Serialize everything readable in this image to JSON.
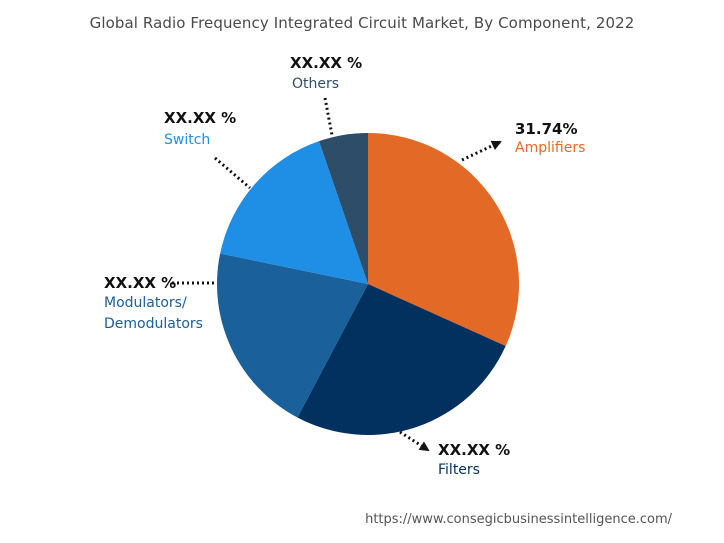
{
  "title": "Global Radio Frequency Integrated Circuit Market, By Component, 2022",
  "source": "https://www.consegicbusinessintelligence.com/",
  "chart_data": {
    "type": "pie",
    "title": "Global Radio Frequency Integrated Circuit Market, By Component, 2022",
    "slices": [
      {
        "name": "Amplifiers",
        "label_line1": "Amplifiers",
        "label_line2": "",
        "value": 31.74,
        "pct_text": "31.74%",
        "color": "#e36a26",
        "label_color": "#e36a26"
      },
      {
        "name": "Filters",
        "label_line1": "Filters",
        "label_line2": "",
        "value": 26.0,
        "pct_text": "XX.XX %",
        "color": "#02315f",
        "label_color": "#02315f"
      },
      {
        "name": "Modulators/Demodulators",
        "label_line1": "Modulators/",
        "label_line2": "Demodulators",
        "value": 20.5,
        "pct_text": "XX.XX %",
        "color": "#1a609a",
        "label_color": "#1a609a"
      },
      {
        "name": "Switch",
        "label_line1": "Switch",
        "label_line2": "",
        "value": 16.5,
        "pct_text": "XX.XX %",
        "color": "#1f8fe6",
        "label_color": "#1f8fe6"
      },
      {
        "name": "Others",
        "label_line1": "Others",
        "label_line2": "",
        "value": 5.26,
        "pct_text": "XX.XX %",
        "color": "#2e4d69",
        "label_color": "#2e4d69"
      }
    ]
  }
}
